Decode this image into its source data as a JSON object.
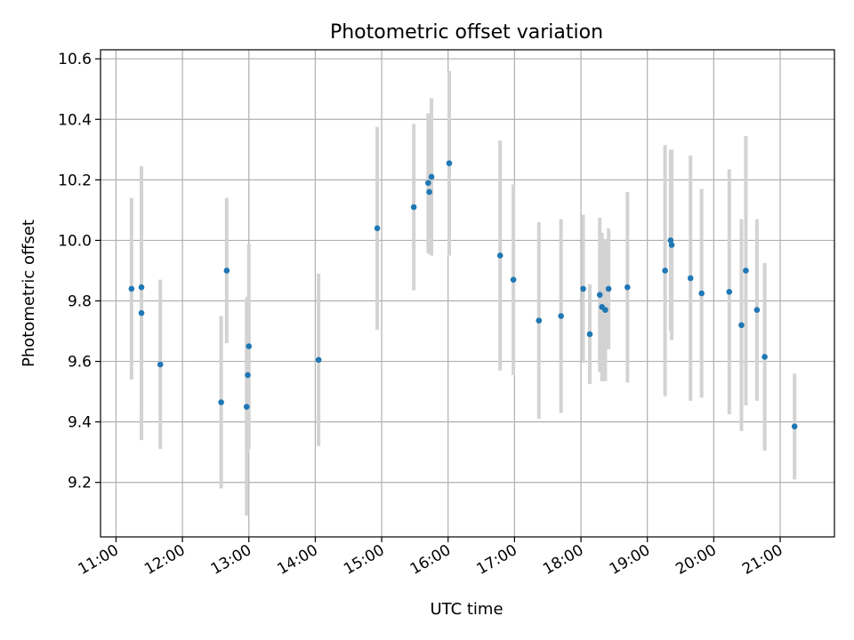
{
  "chart_data": {
    "type": "scatter",
    "title": "Photometric offset variation",
    "xlabel": "UTC time",
    "ylabel": "Photometric offset",
    "xlim": [
      "10:46",
      "21:49"
    ],
    "ylim": [
      9.02,
      10.63
    ],
    "x_ticks": [
      "11:00",
      "12:00",
      "13:00",
      "14:00",
      "15:00",
      "16:00",
      "17:00",
      "18:00",
      "19:00",
      "20:00",
      "21:00"
    ],
    "y_ticks": [
      "9.2",
      "9.4",
      "9.6",
      "9.8",
      "10.0",
      "10.2",
      "10.4",
      "10.6"
    ],
    "grid": true,
    "colors": {
      "point": "#1f77b4",
      "errorbar": "#d3d3d3",
      "grid": "#b0b0b0"
    },
    "series": [
      {
        "points": [
          {
            "t": "11:14",
            "y": 9.84,
            "err": 0.3
          },
          {
            "t": "11:23",
            "y": 9.76,
            "err": 0.42
          },
          {
            "t": "11:23",
            "y": 9.845,
            "err": 0.4
          },
          {
            "t": "11:40",
            "y": 9.59,
            "err": 0.28
          },
          {
            "t": "12:35",
            "y": 9.465,
            "err": 0.285
          },
          {
            "t": "12:40",
            "y": 9.9,
            "err": 0.24
          },
          {
            "t": "12:58",
            "y": 9.45,
            "err": 0.36
          },
          {
            "t": "12:59",
            "y": 9.555,
            "err": 0.26
          },
          {
            "t": "13:00",
            "y": 9.65,
            "err": 0.34
          },
          {
            "t": "14:03",
            "y": 9.605,
            "err": 0.285
          },
          {
            "t": "14:56",
            "y": 10.04,
            "err": 0.335
          },
          {
            "t": "15:29",
            "y": 10.11,
            "err": 0.275
          },
          {
            "t": "15:42",
            "y": 10.19,
            "err": 0.23
          },
          {
            "t": "15:43",
            "y": 10.16,
            "err": 0.205
          },
          {
            "t": "15:45",
            "y": 10.21,
            "err": 0.26
          },
          {
            "t": "16:01",
            "y": 10.255,
            "err": 0.305
          },
          {
            "t": "16:47",
            "y": 9.95,
            "err": 0.38
          },
          {
            "t": "16:59",
            "y": 9.87,
            "err": 0.315
          },
          {
            "t": "17:22",
            "y": 9.735,
            "err": 0.325
          },
          {
            "t": "17:42",
            "y": 9.75,
            "err": 0.32
          },
          {
            "t": "18:02",
            "y": 9.84,
            "err": 0.245
          },
          {
            "t": "18:08",
            "y": 9.69,
            "err": 0.165
          },
          {
            "t": "18:17",
            "y": 9.82,
            "err": 0.255
          },
          {
            "t": "18:19",
            "y": 9.78,
            "err": 0.245
          },
          {
            "t": "18:22",
            "y": 9.77,
            "err": 0.235
          },
          {
            "t": "18:25",
            "y": 9.84,
            "err": 0.2
          },
          {
            "t": "18:42",
            "y": 9.845,
            "err": 0.315
          },
          {
            "t": "19:16",
            "y": 9.9,
            "err": 0.415
          },
          {
            "t": "19:21",
            "y": 10.0,
            "err": 0.3
          },
          {
            "t": "19:22",
            "y": 9.985,
            "err": 0.315
          },
          {
            "t": "19:39",
            "y": 9.875,
            "err": 0.405
          },
          {
            "t": "19:49",
            "y": 9.825,
            "err": 0.345
          },
          {
            "t": "20:14",
            "y": 9.83,
            "err": 0.405
          },
          {
            "t": "20:25",
            "y": 9.72,
            "err": 0.35
          },
          {
            "t": "20:29",
            "y": 9.9,
            "err": 0.445
          },
          {
            "t": "20:39",
            "y": 9.77,
            "err": 0.3
          },
          {
            "t": "20:46",
            "y": 9.615,
            "err": 0.31
          },
          {
            "t": "21:13",
            "y": 9.385,
            "err": 0.175
          }
        ]
      }
    ]
  }
}
